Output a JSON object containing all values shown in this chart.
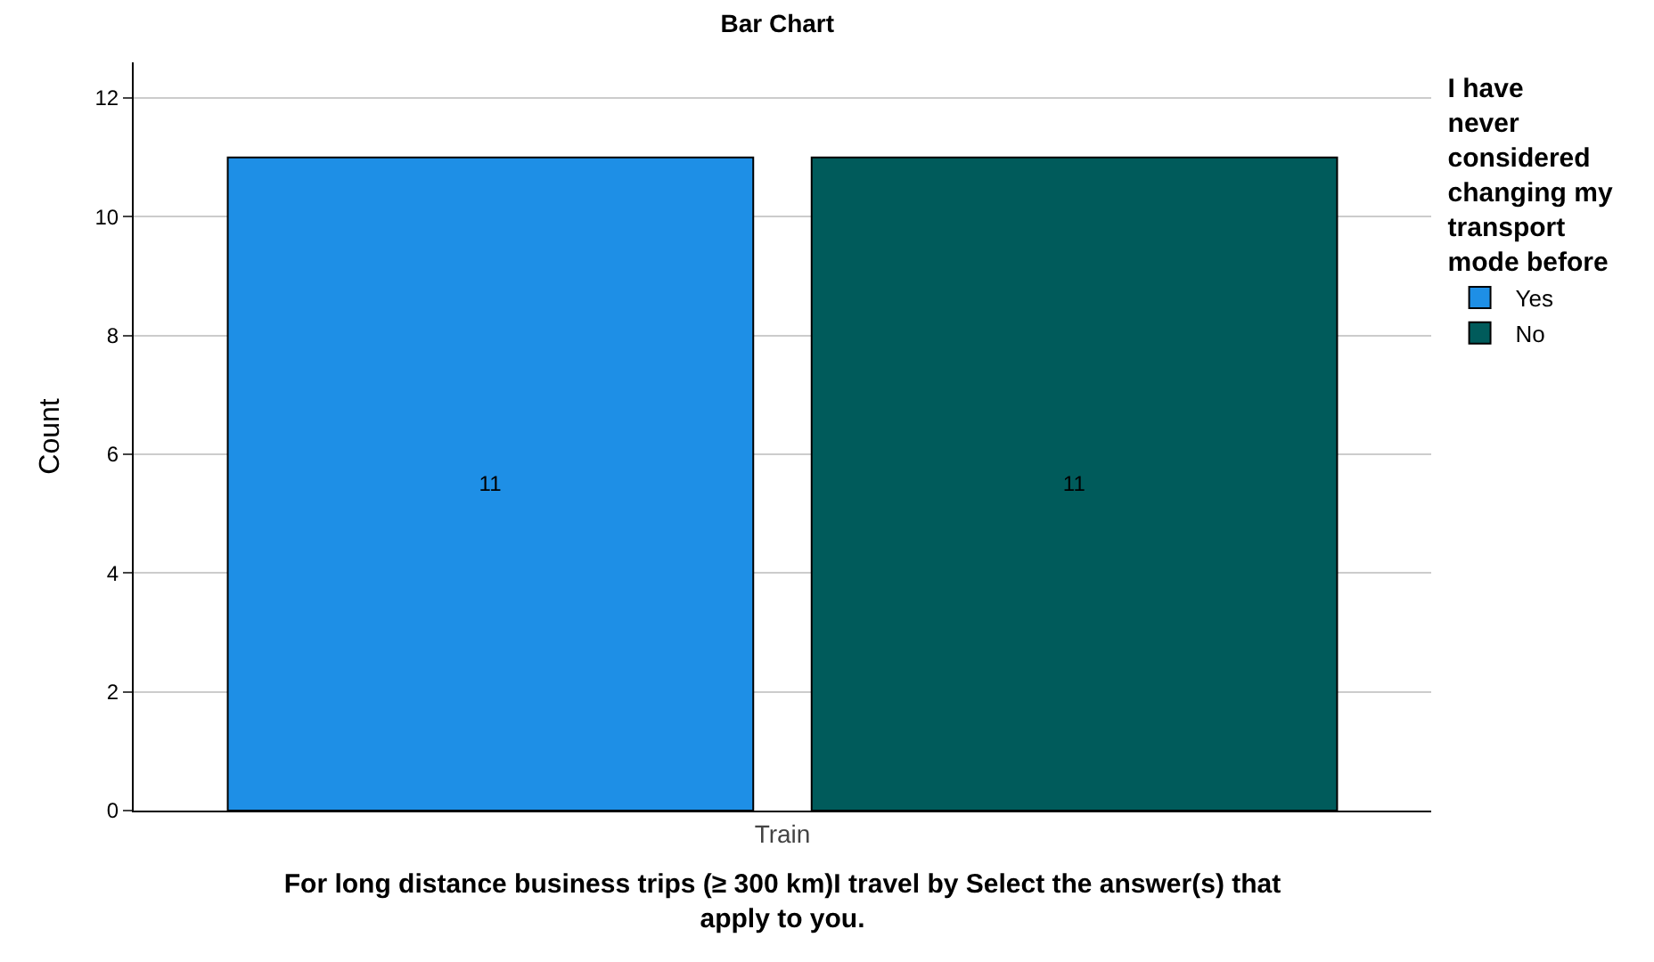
{
  "chart_data": {
    "type": "bar",
    "title": "Bar Chart",
    "xlabel": "For long distance business trips (≥ 300 km)I travel by Select the answer(s) that apply to you.",
    "ylabel": "Count",
    "legend_title": "I have never considered changing my transport mode before",
    "categories": [
      "Train"
    ],
    "series": [
      {
        "name": "Yes",
        "color": "#1e8fe6",
        "values": [
          11
        ]
      },
      {
        "name": "No",
        "color": "#005b5b",
        "values": [
          11
        ]
      }
    ],
    "ylim": [
      0,
      12.6
    ],
    "yticks": [
      0,
      2,
      4,
      6,
      8,
      10,
      12
    ],
    "grid": "y",
    "legend": "right",
    "data_labels": true
  }
}
